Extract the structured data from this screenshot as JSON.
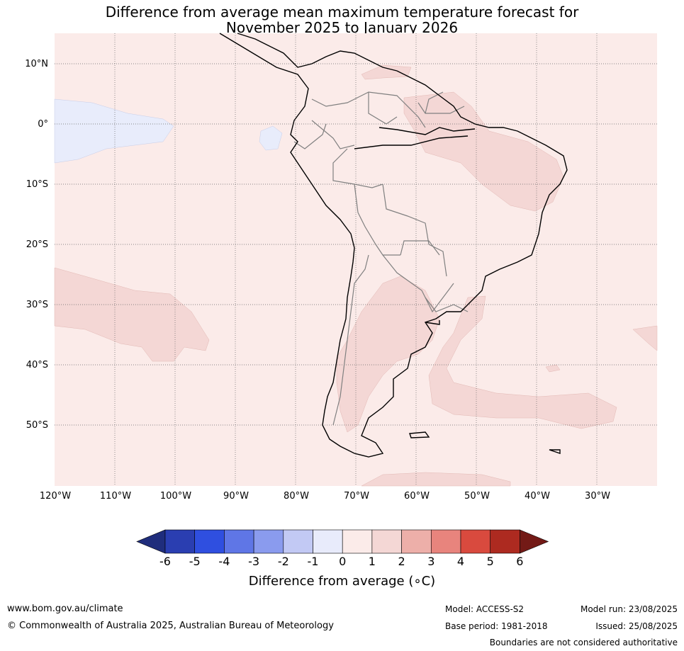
{
  "title": {
    "line1": "Difference from average mean maximum temperature forecast for",
    "line2": "November 2025 to January 2026"
  },
  "map": {
    "lat_labels": [
      "10°N",
      "0°",
      "10°S",
      "20°S",
      "30°S",
      "40°S",
      "50°S"
    ],
    "lon_labels": [
      "120°W",
      "110°W",
      "100°W",
      "90°W",
      "80°W",
      "70°W",
      "60°W",
      "50°W",
      "40°W",
      "30°W"
    ],
    "region": "South America",
    "dominant_category": "0 to 1",
    "colors": {
      "category_0_1": "#fbebe9",
      "category_1_2": "#f4d7d5",
      "category_m1_0": "#e8ecfb",
      "coastline": "#000000",
      "borders": "#808080",
      "gridlines": "#555555"
    }
  },
  "colorbar": {
    "ticks": [
      "-6",
      "-5",
      "-4",
      "-3",
      "-2",
      "-1",
      "0",
      "1",
      "2",
      "3",
      "4",
      "5",
      "6"
    ],
    "colors": [
      "#1f2d7c",
      "#2a3eb1",
      "#2f4fe0",
      "#5f76e6",
      "#8a9bee",
      "#c2c9f4",
      "#e8ebfb",
      "#fbebe9",
      "#f4d7d5",
      "#edafa9",
      "#e8847d",
      "#d94a3e",
      "#ad2a20",
      "#731a16"
    ],
    "label": "Difference from average (∘C)"
  },
  "footer": {
    "website": "www.bom.gov.au/climate",
    "copyright": "© Commonwealth of Australia 2025, Australian Bureau of Meteorology",
    "model": "Model: ACCESS-S2",
    "base_period": "Base period: 1981-2018",
    "model_run": "Model run: 23/08/2025",
    "issued": "Issued: 25/08/2025",
    "disclaimer": "Boundaries are not considered authoritative"
  }
}
